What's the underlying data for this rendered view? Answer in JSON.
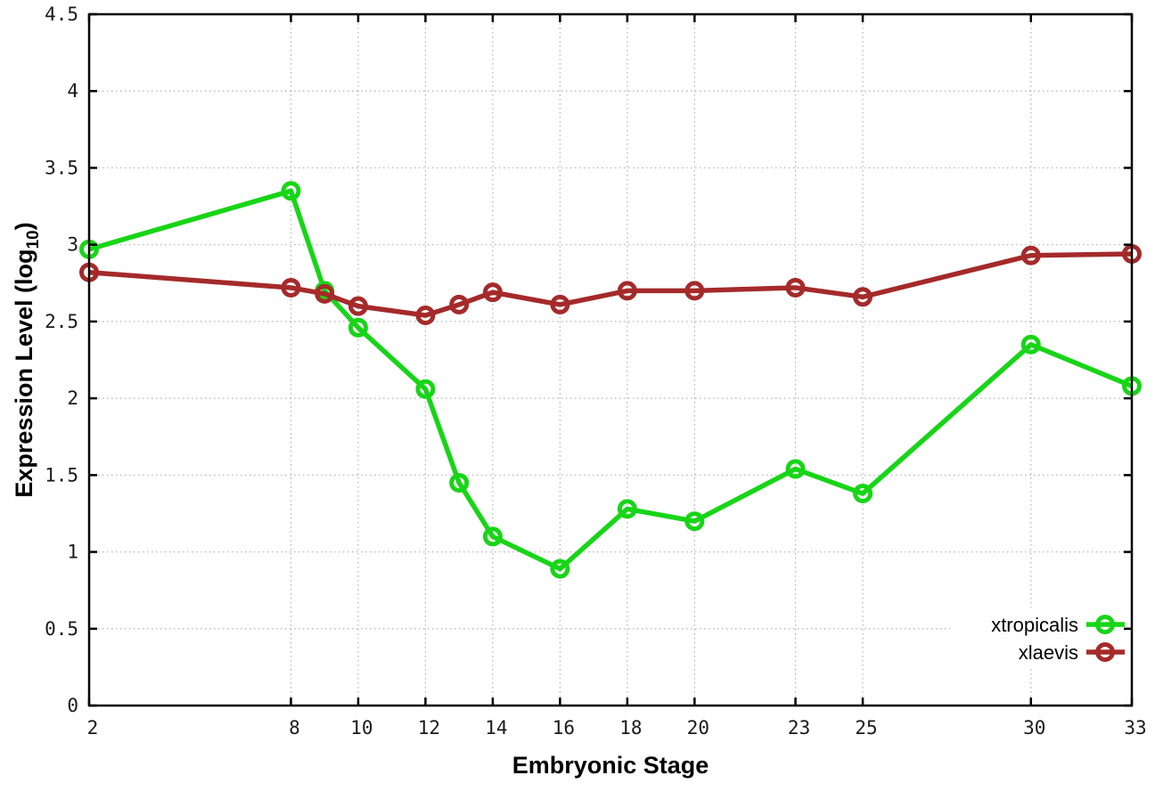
{
  "chart_data": {
    "type": "line",
    "title": "",
    "xlabel": "Embryonic Stage",
    "ylabel": {
      "pre": "Expression Level (log",
      "sub": "10",
      "post": ")"
    },
    "x": [
      2,
      8,
      9,
      10,
      12,
      13,
      14,
      16,
      18,
      20,
      23,
      25,
      30,
      33
    ],
    "series": [
      {
        "name": "xtropicalis",
        "color": "#17d517",
        "marker": "open-circle",
        "values": [
          2.97,
          3.35,
          2.7,
          2.46,
          2.06,
          1.45,
          1.1,
          0.89,
          1.28,
          1.2,
          1.54,
          1.38,
          2.35,
          2.08
        ]
      },
      {
        "name": "xlaevis",
        "color": "#a52a2a",
        "marker": "open-circle",
        "values": [
          2.82,
          2.72,
          2.68,
          2.6,
          2.54,
          2.61,
          2.69,
          2.61,
          2.7,
          2.7,
          2.72,
          2.66,
          2.93,
          2.94
        ]
      }
    ],
    "xlim": [
      2,
      33
    ],
    "ylim": [
      0,
      4.5
    ],
    "xticks": [
      2,
      8,
      10,
      12,
      14,
      16,
      18,
      20,
      23,
      25,
      30,
      33
    ],
    "xtick_labels": [
      "2",
      "8",
      "10",
      "12",
      "14",
      "16",
      "18",
      "20",
      "23",
      "25",
      "30",
      "33"
    ],
    "ytick_values": [
      0,
      0.5,
      1,
      1.5,
      2,
      2.5,
      3,
      3.5,
      4,
      4.5
    ],
    "ytick_labels": [
      "0",
      "0.5",
      "1",
      "1.5",
      "2",
      "2.5",
      "3",
      "3.5",
      "4",
      "4.5"
    ],
    "grid": true,
    "grid_style": "dotted",
    "legend_position": "inside-bottom-right",
    "colors": {
      "background": "#ffffff",
      "axis": "#000000",
      "grid": "#b0b0b0",
      "tick_text": "#1a1a1a"
    }
  }
}
